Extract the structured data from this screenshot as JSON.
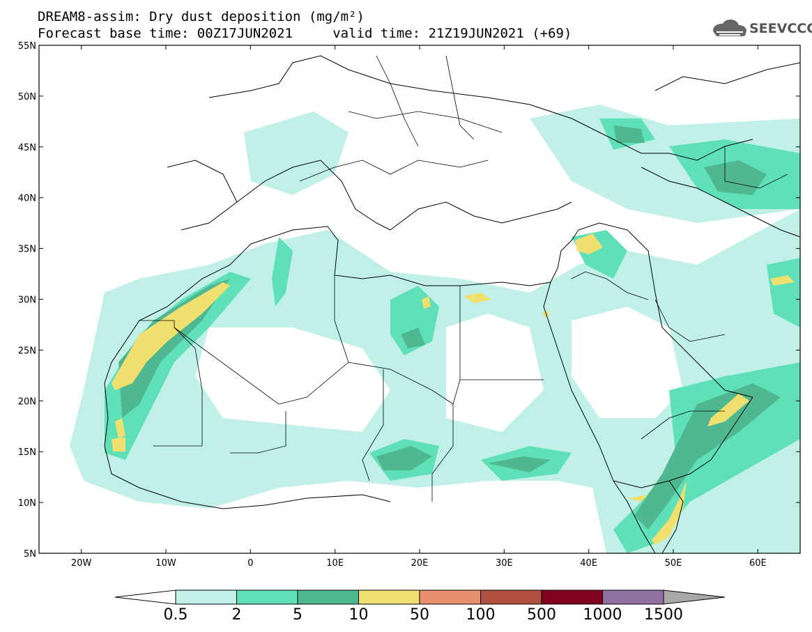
{
  "title": {
    "line1": "DREAM8-assim: Dry dust deposition (mg/m²)",
    "line2": "Forecast base time: 00Z17JUN2021     valid time: 21Z19JUN2021 (+69)"
  },
  "logo": {
    "text": "SEEVCCC",
    "icon": "cloud-icon"
  },
  "map": {
    "lon_range": [
      -25,
      65
    ],
    "lat_range": [
      5,
      55
    ],
    "lat_ticks": [
      "55N",
      "50N",
      "45N",
      "40N",
      "35N",
      "30N",
      "25N",
      "20N",
      "15N",
      "10N",
      "5N"
    ],
    "lon_ticks": [
      "20W",
      "10W",
      "0",
      "10E",
      "20E",
      "30E",
      "40E",
      "50E",
      "60E"
    ]
  },
  "colorbar": {
    "labels": [
      "0.5",
      "2",
      "5",
      "10",
      "50",
      "100",
      "500",
      "1000",
      "1500"
    ],
    "colors": [
      "#c0f0e8",
      "#60e0b8",
      "#50b890",
      "#f0e070",
      "#e89070",
      "#b05040",
      "#800020",
      "#9070a0",
      "#a8a8a8"
    ]
  }
}
